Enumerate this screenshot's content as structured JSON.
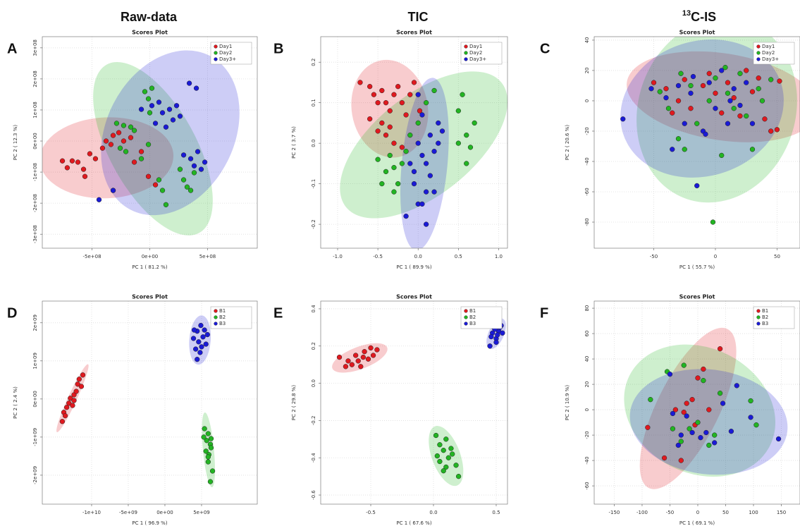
{
  "column_titles": [
    "Raw-data",
    "TIC",
    {
      "sup": "13",
      "text": "C-IS"
    }
  ],
  "chart_data": [
    {
      "type": "scatter",
      "label": "A",
      "title": "Scores Plot",
      "xlabel": "PC 1 ( 81.2 %)",
      "ylabel": "PC 2 ( 12.3 %)",
      "xlim": [
        -930000000.0,
        930000000.0
      ],
      "ylim": [
        -345000000.0,
        336000000.0
      ],
      "xticks": [
        {
          "value": -500000000.0,
          "label": "-5e+08"
        },
        {
          "value": 0,
          "label": "0e+00"
        },
        {
          "value": 500000000.0,
          "label": "5e+08"
        }
      ],
      "yticks": [
        {
          "value": -300000000.0,
          "label": "-3e+08"
        },
        {
          "value": -200000000.0,
          "label": "-2e+08"
        },
        {
          "value": -100000000.0,
          "label": "-1e+08"
        },
        {
          "value": 0,
          "label": "0e+00"
        },
        {
          "value": 100000000.0,
          "label": "1e+08"
        },
        {
          "value": 200000000.0,
          "label": "2e+08"
        },
        {
          "value": 300000000.0,
          "label": "3e+08"
        }
      ],
      "grid": true,
      "series": [
        {
          "name": "Day1",
          "color": "#e0191f",
          "x": [
            -756000000.0,
            -714000000.0,
            -671000000.0,
            -622000000.0,
            -573000000.0,
            -519000000.0,
            -470000000.0,
            -409000000.0,
            -378000000.0,
            -336000000.0,
            -317000000.0,
            -268000000.0,
            -226000000.0,
            -165000000.0,
            -134000000.0,
            -73000000.0,
            -12000000.0,
            49000000.0,
            -317000000.0,
            -561000000.0
          ],
          "y": [
            -64000000.0,
            -86000000.0,
            -64000000.0,
            -68000000.0,
            -91000000.0,
            -41000000.0,
            -57000000.0,
            -23000000.0,
            0,
            -11000000.0,
            18000000.0,
            27000000.0,
            0,
            11000000.0,
            -68000000.0,
            -34000000.0,
            -114000000.0,
            -141000000.0,
            -159000000.0,
            -114000000.0
          ]
        },
        {
          "name": "Day2",
          "color": "#22b422",
          "x": [
            -287000000.0,
            -226000000.0,
            -165000000.0,
            -134000000.0,
            -256000000.0,
            -207000000.0,
            -73000000.0,
            -12000000.0,
            -43000000.0,
            -12000000.0,
            0,
            18000000.0,
            79000000.0,
            110000000.0,
            140000000.0,
            293000000.0,
            323000000.0,
            354000000.0,
            384000000.0,
            262000000.0
          ],
          "y": [
            57000000.0,
            50000000.0,
            45000000.0,
            34000000.0,
            -23000000.0,
            -34000000.0,
            -57000000.0,
            -11000000.0,
            159000000.0,
            136000000.0,
            91000000.0,
            170000000.0,
            -125000000.0,
            -159000000.0,
            -205000000.0,
            -125000000.0,
            -148000000.0,
            -159000000.0,
            -102000000.0,
            -91000000.0
          ]
        },
        {
          "name": "Day3+",
          "color": "#1a1ad6",
          "x": [
            18000000.0,
            79000000.0,
            110000000.0,
            171000000.0,
            201000000.0,
            232000000.0,
            140000000.0,
            49000000.0,
            262000000.0,
            -73000000.0,
            293000000.0,
            354000000.0,
            384000000.0,
            415000000.0,
            445000000.0,
            342000000.0,
            403000000.0,
            -317000000.0,
            -439000000.0,
            476000000.0
          ],
          "y": [
            114000000.0,
            125000000.0,
            91000000.0,
            102000000.0,
            68000000.0,
            114000000.0,
            45000000.0,
            57000000.0,
            80000000.0,
            102000000.0,
            -45000000.0,
            -57000000.0,
            -80000000.0,
            -34000000.0,
            -91000000.0,
            186000000.0,
            170000000.0,
            -159000000.0,
            -189000000.0,
            -68000000.0
          ]
        }
      ]
    },
    {
      "type": "scatter",
      "label": "B",
      "title": "Scores Plot",
      "xlabel": "PC 1 ( 89.9 %)",
      "ylabel": "PC 2 ( 3.7 %)",
      "xlim": [
        -1.21,
        1.11
      ],
      "ylim": [
        -0.259,
        0.263
      ],
      "xticks": [
        {
          "value": -1,
          "label": "-1.0"
        },
        -0.5,
        {
          "value": 0,
          "label": "0.0"
        },
        0.5,
        {
          "value": 1,
          "label": "1.0"
        }
      ],
      "yticks": [
        -0.2,
        -0.1,
        {
          "value": 0,
          "label": "0.0"
        },
        0.1,
        0.2
      ],
      "grid": true,
      "series": [
        {
          "name": "Day1",
          "color": "#e0191f",
          "x": [
            -0.72,
            -0.6,
            -0.55,
            -0.5,
            -0.45,
            -0.4,
            -0.35,
            -0.3,
            -0.25,
            -0.2,
            -0.15,
            -0.1,
            -0.05,
            -0.6,
            -0.5,
            -0.4,
            -0.3,
            -0.2,
            -0.45,
            -0.35,
            0.02
          ],
          "y": [
            0.15,
            0.14,
            0.12,
            0.1,
            0.13,
            0.1,
            0.08,
            0.12,
            0.14,
            0.1,
            0.07,
            0.12,
            0.15,
            0.06,
            0.03,
            0.02,
            0.0,
            -0.01,
            0.05,
            0.04,
            0.08
          ]
        },
        {
          "name": "Day2",
          "color": "#22b422",
          "x": [
            -0.5,
            -0.45,
            -0.4,
            -0.35,
            -0.3,
            -0.25,
            -0.2,
            -0.15,
            -0.1,
            0.0,
            0.1,
            0.2,
            0.5,
            0.55,
            0.6,
            0.65,
            0.7,
            0.6,
            -0.3,
            0.5
          ],
          "y": [
            -0.04,
            -0.1,
            -0.07,
            -0.03,
            -0.06,
            -0.1,
            -0.05,
            -0.02,
            0.02,
            0.05,
            0.1,
            0.13,
            0.08,
            0.12,
            0.02,
            -0.01,
            0.05,
            -0.05,
            -0.12,
            0.0
          ]
        },
        {
          "name": "Day3+",
          "color": "#1a1ad6",
          "x": [
            0.0,
            0.05,
            0.1,
            0.15,
            0.2,
            0.25,
            0.1,
            0.0,
            -0.05,
            -0.1,
            0.2,
            0.25,
            0.3,
            0.05,
            0.0,
            -0.15,
            0.1,
            -0.05,
            0.15,
            0.05
          ],
          "y": [
            0.0,
            -0.03,
            -0.05,
            -0.08,
            -0.02,
            0.05,
            -0.12,
            -0.15,
            -0.1,
            -0.05,
            -0.12,
            0.0,
            0.03,
            0.07,
            0.12,
            -0.18,
            -0.2,
            -0.07,
            0.02,
            -0.15
          ]
        }
      ]
    },
    {
      "type": "scatter",
      "label": "C",
      "title": "Scores Plot",
      "xlabel": "PC 1 ( 55.7 %)",
      "ylabel": "PC 2 ( 20.6 %)",
      "xlim": [
        -98.3,
        68.6
      ],
      "ylim": [
        -97.2,
        42.3
      ],
      "xticks": [
        -50,
        0,
        50
      ],
      "yticks": [
        -80,
        -60,
        -40,
        -20,
        0,
        20,
        40
      ],
      "grid": true,
      "series": [
        {
          "name": "Day1",
          "color": "#e0191f",
          "x": [
            -50,
            -40,
            -30,
            -25,
            -20,
            -10,
            -5,
            0,
            5,
            10,
            15,
            20,
            25,
            30,
            40,
            45,
            50,
            52,
            -35,
            35
          ],
          "y": [
            12,
            8,
            0,
            14,
            -5,
            10,
            18,
            5,
            -8,
            12,
            2,
            -10,
            20,
            6,
            -12,
            -20,
            -19,
            13,
            -8,
            15
          ]
        },
        {
          "name": "Day2",
          "color": "#22b422",
          "x": [
            -45,
            -38,
            -30,
            -25,
            -20,
            -15,
            -5,
            0,
            5,
            10,
            15,
            20,
            25,
            30,
            35,
            38,
            -2,
            -28,
            8,
            45
          ],
          "y": [
            6,
            -5,
            -25,
            -32,
            10,
            -15,
            0,
            15,
            -36,
            5,
            -5,
            18,
            -10,
            -32,
            8,
            0,
            -80,
            18,
            22,
            14
          ]
        },
        {
          "name": "Day3+",
          "color": "#1a1ad6",
          "x": [
            -75,
            -52,
            -40,
            -35,
            -30,
            -25,
            -20,
            -15,
            -10,
            -5,
            0,
            5,
            10,
            15,
            20,
            25,
            30,
            -8,
            12,
            -18
          ],
          "y": [
            -12,
            8,
            2,
            -32,
            10,
            -15,
            5,
            -56,
            -20,
            12,
            -5,
            20,
            -15,
            8,
            -3,
            12,
            -15,
            -22,
            0,
            16
          ]
        }
      ]
    },
    {
      "type": "scatter",
      "label": "D",
      "title": "Scores Plot",
      "xlabel": "PC 1 ( 96.9 %)",
      "ylabel": "PC 2 ( 2.4 %)",
      "xlim": [
        -16730000000.0,
        12600000000.0
      ],
      "ylim": [
        -2760000000.0,
        2570000000.0
      ],
      "xticks": [
        {
          "value": -10000000000.0,
          "label": "-1e+10"
        },
        {
          "value": -5000000000.0,
          "label": "-5e+09"
        },
        {
          "value": 0,
          "label": "0e+00"
        },
        {
          "value": 5000000000.0,
          "label": "5e+09"
        }
      ],
      "yticks": [
        {
          "value": -2000000000.0,
          "label": "-2e+09"
        },
        {
          "value": -1000000000.0,
          "label": "-1e+09"
        },
        {
          "value": 0,
          "label": "0e+00"
        },
        {
          "value": 1000000000.0,
          "label": "1e+09"
        },
        {
          "value": 2000000000.0,
          "label": "2e+09"
        }
      ],
      "grid": true,
      "series": [
        {
          "name": "B1",
          "color": "#e0191f",
          "x": [
            -14000000000.0,
            -13800000000.0,
            -13400000000.0,
            -13100000000.0,
            -12900000000.0,
            -12600000000.0,
            -12400000000.0,
            -12100000000.0,
            -11900000000.0,
            -11700000000.0,
            -11400000000.0,
            -11200000000.0,
            -12400000000.0,
            -13600000000.0
          ],
          "y": [
            -590000000.0,
            -350000000.0,
            -220000000.0,
            -110000000.0,
            20000000.0,
            -170000000.0,
            110000000.0,
            200000000.0,
            390000000.0,
            520000000.0,
            330000000.0,
            630000000.0,
            -40000000.0,
            -440000000.0
          ]
        },
        {
          "name": "B2",
          "color": "#22b422",
          "x": [
            5400000000.0,
            5900000000.0,
            5700000000.0,
            6200000000.0,
            5600000000.0,
            6000000000.0,
            6300000000.0,
            5900000000.0,
            6500000000.0,
            6200000000.0,
            5300000000.0,
            6300000000.0,
            5900000000.0
          ],
          "y": [
            -780000000.0,
            -910000000.0,
            -1090000000.0,
            -1190000000.0,
            -1370000000.0,
            -1460000000.0,
            -1280000000.0,
            -1650000000.0,
            -1890000000.0,
            -2170000000.0,
            -1000000000.0,
            -1040000000.0,
            -1520000000.0
          ]
        },
        {
          "name": "B3",
          "color": "#1a1ad6",
          "x": [
            4400000000.0,
            4900000000.0,
            5400000000.0,
            3900000000.0,
            4600000000.0,
            5200000000.0,
            4200000000.0,
            4800000000.0,
            5600000000.0,
            4400000000.0,
            5000000000.0,
            4000000000.0,
            5800000000.0
          ],
          "y": [
            1780000000.0,
            1930000000.0,
            1810000000.0,
            1590000000.0,
            1500000000.0,
            1630000000.0,
            1310000000.0,
            1220000000.0,
            1440000000.0,
            1040000000.0,
            1370000000.0,
            1810000000.0,
            1690000000.0
          ]
        }
      ]
    },
    {
      "type": "scatter",
      "label": "E",
      "title": "Scores Plot",
      "xlabel": "PC 1 ( 67.6 %)",
      "ylabel": "PC 2 ( 29.8 %)",
      "xlim": [
        -0.899,
        0.59
      ],
      "ylim": [
        -0.649,
        0.4415
      ],
      "xticks": [
        -0.5,
        {
          "value": 0,
          "label": "0.0"
        },
        0.5
      ],
      "yticks": [
        -0.6,
        -0.4,
        -0.2,
        {
          "value": 0,
          "label": "0.0"
        },
        0.2,
        0.4
      ],
      "grid": true,
      "series": [
        {
          "name": "B1",
          "color": "#e0191f",
          "x": [
            -0.75,
            -0.7,
            -0.65,
            -0.62,
            -0.6,
            -0.58,
            -0.55,
            -0.52,
            -0.5,
            -0.48,
            -0.45,
            -0.68,
            -0.56
          ],
          "y": [
            0.14,
            0.09,
            0.1,
            0.15,
            0.12,
            0.09,
            0.17,
            0.13,
            0.19,
            0.15,
            0.18,
            0.12,
            0.14
          ]
        },
        {
          "name": "B2",
          "color": "#22b422",
          "x": [
            0.02,
            0.05,
            0.08,
            0.1,
            0.12,
            0.15,
            0.05,
            0.1,
            0.18,
            0.2,
            0.08,
            0.14,
            0.03
          ],
          "y": [
            -0.28,
            -0.33,
            -0.36,
            -0.3,
            -0.4,
            -0.38,
            -0.42,
            -0.45,
            -0.44,
            -0.5,
            -0.47,
            -0.35,
            -0.39
          ]
        },
        {
          "name": "B3",
          "color": "#1a1ad6",
          "x": [
            0.45,
            0.47,
            0.48,
            0.5,
            0.52,
            0.54,
            0.5,
            0.55,
            0.46,
            0.53,
            0.49,
            0.51
          ],
          "y": [
            0.2,
            0.27,
            0.3,
            0.24,
            0.28,
            0.31,
            0.22,
            0.27,
            0.25,
            0.3,
            0.29,
            0.26
          ]
        }
      ]
    },
    {
      "type": "scatter",
      "label": "F",
      "title": "Scores Plot",
      "xlabel": "PC 1 ( 69.1 %)",
      "ylabel": "PC 2 ( 10.9 %)",
      "xlim": [
        -186,
        183.5
      ],
      "ylim": [
        -74.4,
        85.6
      ],
      "xticks": [
        -150,
        -100,
        -50,
        0,
        50,
        100,
        150
      ],
      "yticks": [
        -60,
        -40,
        -20,
        0,
        20,
        40,
        60,
        80
      ],
      "grid": true,
      "series": [
        {
          "name": "B1",
          "color": "#e0191f",
          "x": [
            -90,
            -60,
            -30,
            -25,
            -20,
            0,
            10,
            20,
            40,
            -10,
            -40,
            -5
          ],
          "y": [
            -14,
            -38,
            -40,
            -2,
            5,
            25,
            32,
            0,
            48,
            8,
            0,
            -12
          ]
        },
        {
          "name": "B2",
          "color": "#22b422",
          "x": [
            -85,
            -55,
            -25,
            -15,
            0,
            10,
            30,
            40,
            95,
            105,
            -45,
            -30,
            20
          ],
          "y": [
            8,
            30,
            35,
            -15,
            -10,
            23,
            -20,
            13,
            7,
            -12,
            -15,
            -25,
            -28
          ]
        },
        {
          "name": "B3",
          "color": "#1a1ad6",
          "x": [
            -50,
            -45,
            -30,
            -20,
            -10,
            5,
            15,
            30,
            45,
            70,
            95,
            145,
            -35,
            60
          ],
          "y": [
            28,
            -3,
            -20,
            -5,
            -18,
            -22,
            -18,
            -26,
            5,
            19,
            -6,
            -23,
            -28,
            -17
          ]
        }
      ]
    }
  ]
}
